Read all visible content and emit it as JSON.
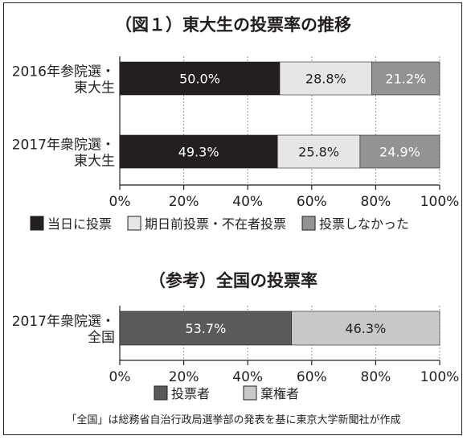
{
  "chart_data": [
    {
      "type": "bar",
      "orientation": "horizontal",
      "stacked": true,
      "title": "（図１）東大生の投票率の推移",
      "categories": [
        [
          "2016年参院選・",
          "東大生"
        ],
        [
          "2017年衆院選・",
          "東大生"
        ]
      ],
      "series": [
        {
          "name": "当日に投票",
          "values": [
            50.0,
            49.3
          ],
          "labels": [
            "50.0%",
            "49.3%"
          ],
          "color": "#231f20",
          "label_color": "#ffffff"
        },
        {
          "name": "期日前投票・不在者投票",
          "values": [
            28.8,
            25.8
          ],
          "labels": [
            "28.8%",
            "25.8%"
          ],
          "color": "#e6e6e6",
          "label_color": "#231f20"
        },
        {
          "name": "投票しなかった",
          "values": [
            21.2,
            24.9
          ],
          "labels": [
            "21.2%",
            "24.9%"
          ],
          "color": "#939393",
          "label_color": "#ffffff"
        }
      ],
      "xlim": [
        0,
        100
      ],
      "xticks": [
        "0%",
        "20%",
        "40%",
        "60%",
        "80%",
        "100%"
      ],
      "grid": true,
      "legend": "bottom"
    },
    {
      "type": "bar",
      "orientation": "horizontal",
      "stacked": true,
      "title": "（参考）全国の投票率",
      "categories": [
        [
          "2017年衆院選・",
          "全国"
        ]
      ],
      "series": [
        {
          "name": "投票者",
          "values": [
            53.7
          ],
          "labels": [
            "53.7%"
          ],
          "color": "#5a5a5a",
          "label_color": "#ffffff"
        },
        {
          "name": "棄権者",
          "values": [
            46.3
          ],
          "labels": [
            "46.3%"
          ],
          "color": "#c8c8c8",
          "label_color": "#231f20"
        }
      ],
      "xlim": [
        0,
        100
      ],
      "xticks": [
        "0%",
        "20%",
        "40%",
        "60%",
        "80%",
        "100%"
      ],
      "grid": true,
      "legend": "bottom"
    }
  ],
  "source_note": "「全国」は総務省自治行政局選挙部の発表を基に東京大学新聞社が作成"
}
